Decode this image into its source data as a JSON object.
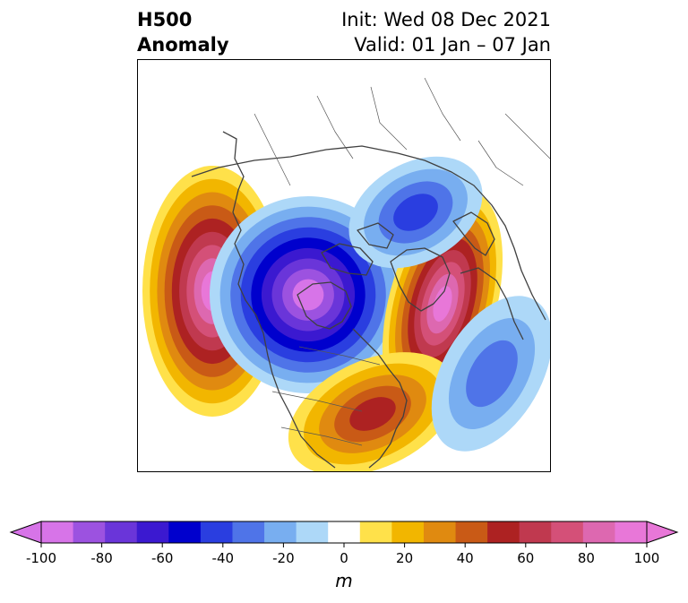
{
  "title": {
    "left_line1": "H500",
    "left_line2": "Anomaly",
    "right_line1": "Init: Wed 08 Dec 2021",
    "right_line2": "Valid: 01 Jan – 07 Jan"
  },
  "colorbar": {
    "unit": "m",
    "tick_labels": [
      "-100",
      "-80",
      "-60",
      "-40",
      "-20",
      "0",
      "20",
      "40",
      "60",
      "80",
      "100"
    ],
    "levels": [
      -100,
      -90,
      -80,
      -70,
      -60,
      -50,
      -40,
      -30,
      -20,
      -10,
      10,
      20,
      30,
      40,
      50,
      60,
      70,
      80,
      90,
      100
    ],
    "colors": [
      "#d774e8",
      "#9c52e0",
      "#6a35d9",
      "#3b19d0",
      "#0000cd",
      "#2a3ee0",
      "#4f74e8",
      "#78aef0",
      "#add8f8",
      "#ffffff",
      "#ffe14a",
      "#f2b600",
      "#e08a10",
      "#c95a16",
      "#ad2222",
      "#c0394f",
      "#d45078",
      "#dd68b0",
      "#e877d8"
    ],
    "low_extend_color": "#d774e8",
    "high_extend_color": "#e877d8"
  },
  "map": {
    "anomaly_centers": [
      {
        "name": "east-pacific-positive",
        "sign": "positive",
        "peak": 100
      },
      {
        "name": "canada-negative",
        "sign": "negative",
        "peak": -100
      },
      {
        "name": "north-atlantic-positive",
        "sign": "positive",
        "peak": 100
      },
      {
        "name": "southeast-us-positive",
        "sign": "positive",
        "peak": 50
      },
      {
        "name": "north-siberia-negative",
        "sign": "negative",
        "peak": -40
      },
      {
        "name": "east-atlantic-negative",
        "sign": "negative",
        "peak": -30
      }
    ]
  }
}
